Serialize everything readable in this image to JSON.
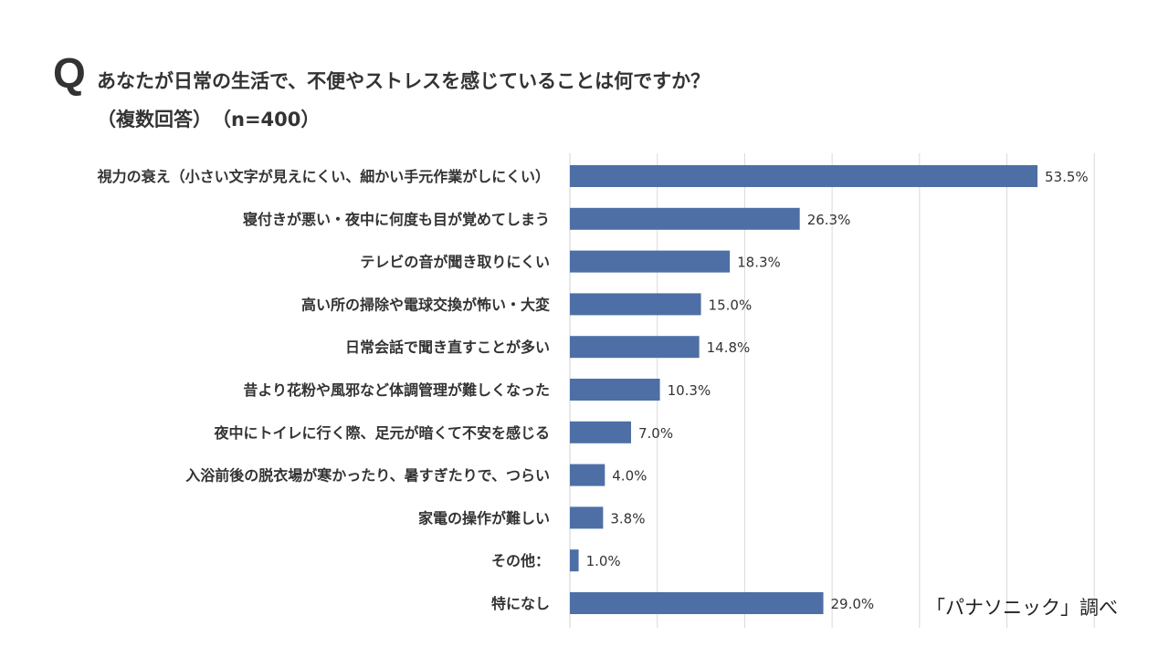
{
  "header": {
    "q_mark": "Q",
    "question": "あなたが日常の生活で、不便やストレスを感じていることは何ですか？",
    "subtitle": "（複数回答）　（n=400）"
  },
  "source": "「パナソニック」調べ",
  "colors": {
    "bar": "#4e6fa6",
    "grid": "#d9d9d9",
    "text": "#333333"
  },
  "chart_data": {
    "type": "bar",
    "orientation": "horizontal",
    "title": "あなたが日常の生活で、不便やストレスを感じていることは何ですか？",
    "subtitle": "（複数回答）　（n=400）",
    "xlabel": "",
    "ylabel": "",
    "xlim": [
      0,
      60
    ],
    "grid": true,
    "value_suffix": "%",
    "categories": [
      "視力の衰え（小さい文字が見えにくい、細かい手元作業がしにくい）",
      "寝付きが悪い・夜中に何度も目が覚めてしまう",
      "テレビの音が聞き取りにくい",
      "高い所の掃除や電球交換が怖い・大変",
      "日常会話で聞き直すことが多い",
      "昔より花粉や風邪など体調管理が難しくなった",
      "夜中にトイレに行く際、足元が暗くて不安を感じる",
      "入浴前後の脱衣場が寒かったり、暑すぎたりで、つらい",
      "家電の操作が難しい",
      "その他：",
      "特になし"
    ],
    "values": [
      53.5,
      26.3,
      18.3,
      15.0,
      14.8,
      10.3,
      7.0,
      4.0,
      3.8,
      1.0,
      29.0
    ],
    "value_labels": [
      "53.5%",
      "26.3%",
      "18.3%",
      "15.0%",
      "14.8%",
      "10.3%",
      "7.0%",
      "4.0%",
      "3.8%",
      "1.0%",
      "29.0%"
    ]
  }
}
